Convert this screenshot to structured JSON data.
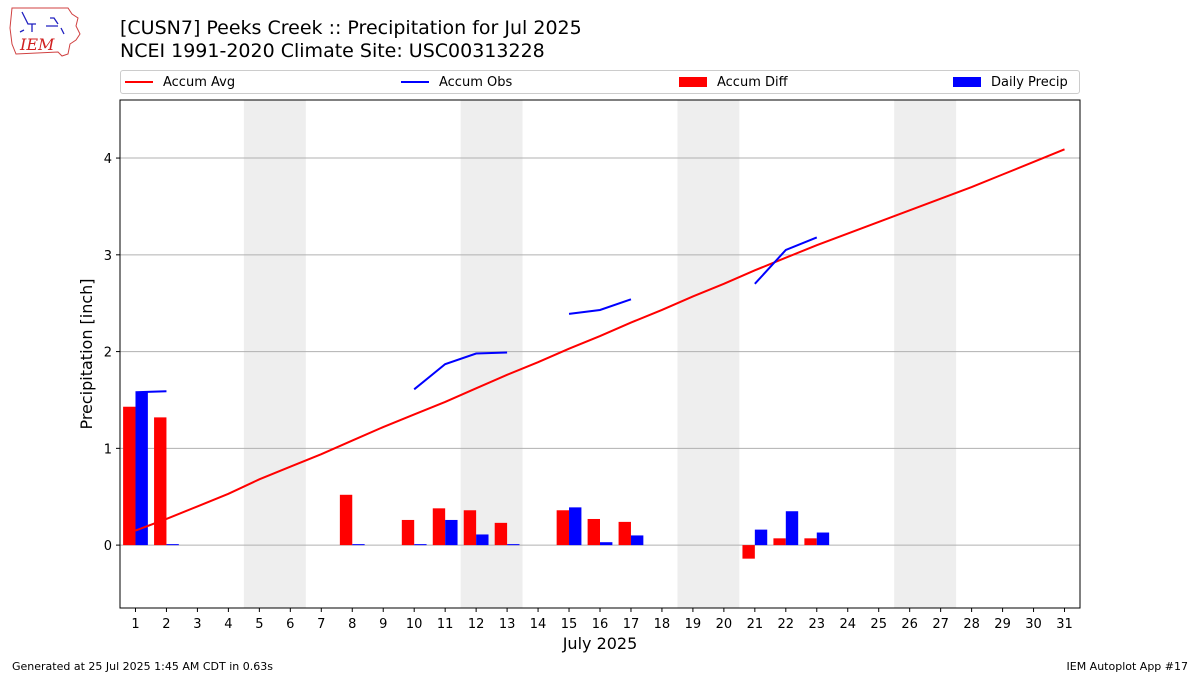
{
  "header": {
    "title": "[CUSN7] Peeks Creek :: Precipitation for Jul 2025",
    "subtitle": "NCEI 1991-2020 Climate Site: USC00313228"
  },
  "logo": {
    "text": "IEM",
    "icon": "iem-iowa-map-logo"
  },
  "footer": {
    "left": "Generated at 25 Jul 2025 1:45 AM CDT in 0.63s",
    "right": "IEM Autoplot App #17"
  },
  "colors": {
    "avg": "#ff0000",
    "obs": "#0000ff",
    "diff": "#ff0000",
    "daily": "#0000ff",
    "weekend": "#eeeeee",
    "grid": "#b0b0b0"
  },
  "chart_data": {
    "type": "bar",
    "xlabel": "July 2025",
    "ylabel": "Precipitation [inch]",
    "ylim": [
      -0.65,
      4.6
    ],
    "xlim": [
      0.5,
      31.5
    ],
    "yticks": [
      0,
      1,
      2,
      3,
      4
    ],
    "xticks": [
      1,
      2,
      3,
      4,
      5,
      6,
      7,
      8,
      9,
      10,
      11,
      12,
      13,
      14,
      15,
      16,
      17,
      18,
      19,
      20,
      21,
      22,
      23,
      24,
      25,
      26,
      27,
      28,
      29,
      30,
      31
    ],
    "grid": "horizontal",
    "legend_position": "top",
    "weekends": [
      [
        5,
        6
      ],
      [
        12,
        13
      ],
      [
        19,
        20
      ],
      [
        26,
        27
      ]
    ],
    "series": [
      {
        "name": "Accum Avg",
        "kind": "line",
        "color": "#ff0000",
        "x": [
          1,
          2,
          3,
          4,
          5,
          6,
          7,
          8,
          9,
          10,
          11,
          12,
          13,
          14,
          15,
          16,
          17,
          18,
          19,
          20,
          21,
          22,
          23,
          24,
          25,
          26,
          27,
          28,
          29,
          30,
          31
        ],
        "values": [
          0.15,
          0.27,
          0.4,
          0.53,
          0.68,
          0.81,
          0.94,
          1.08,
          1.22,
          1.35,
          1.48,
          1.62,
          1.76,
          1.89,
          2.03,
          2.16,
          2.3,
          2.43,
          2.57,
          2.7,
          2.84,
          2.97,
          3.1,
          3.22,
          3.34,
          3.46,
          3.58,
          3.7,
          3.83,
          3.96,
          4.09
        ]
      },
      {
        "name": "Accum Obs",
        "kind": "line",
        "color": "#0000ff",
        "segments": [
          {
            "x": [
              1,
              2
            ],
            "values": [
              1.58,
              1.59
            ]
          },
          {
            "x": [
              10,
              11,
              12,
              13
            ],
            "values": [
              1.61,
              1.87,
              1.98,
              1.99
            ]
          },
          {
            "x": [
              15,
              16,
              17
            ],
            "values": [
              2.39,
              2.43,
              2.54
            ]
          },
          {
            "x": [
              21,
              22,
              23
            ],
            "values": [
              2.7,
              3.05,
              3.18
            ]
          }
        ]
      },
      {
        "name": "Accum Diff",
        "kind": "bar",
        "color": "#ff0000",
        "x": [
          1,
          2,
          8,
          10,
          11,
          12,
          13,
          15,
          16,
          17,
          21,
          22,
          23
        ],
        "values": [
          1.43,
          1.32,
          0.52,
          0.26,
          0.38,
          0.36,
          0.23,
          0.36,
          0.27,
          0.24,
          -0.14,
          0.07,
          0.07
        ]
      },
      {
        "name": "Daily Precip",
        "kind": "bar",
        "color": "#0000ff",
        "x": [
          1,
          2,
          8,
          10,
          11,
          12,
          13,
          15,
          16,
          17,
          21,
          22,
          23
        ],
        "values": [
          1.58,
          0.01,
          0.01,
          0.01,
          0.26,
          0.11,
          0.01,
          0.39,
          0.03,
          0.1,
          0.16,
          0.35,
          0.13
        ]
      }
    ]
  }
}
